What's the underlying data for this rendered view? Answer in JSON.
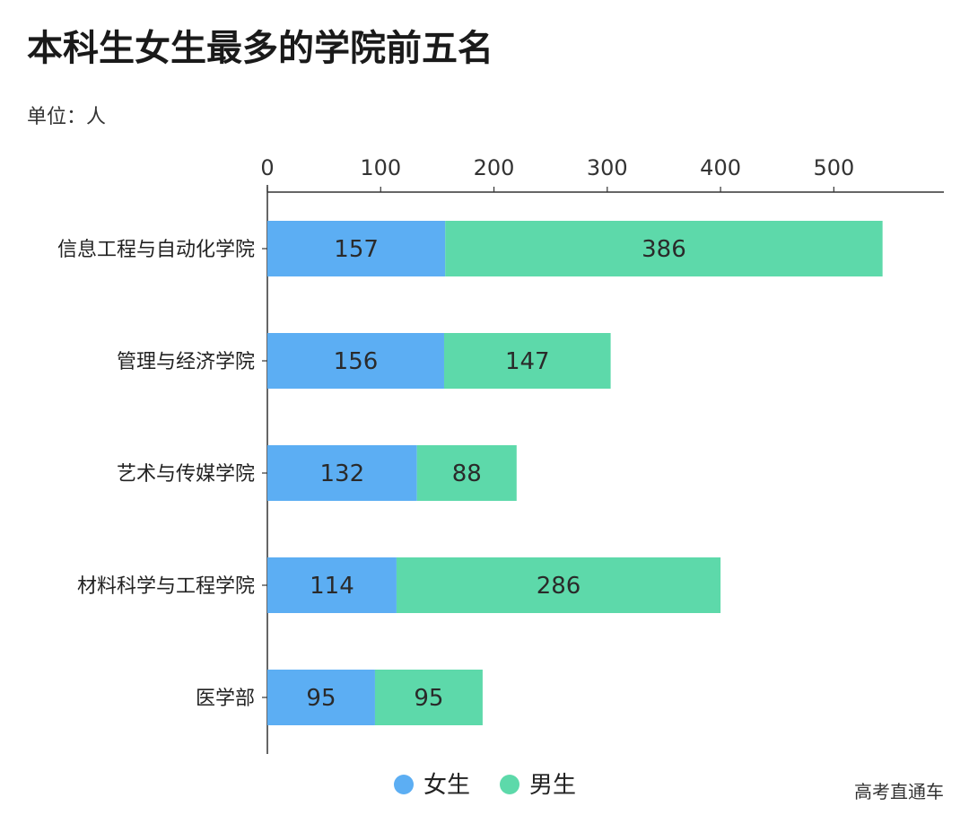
{
  "chart_data": {
    "type": "bar",
    "orientation": "horizontal",
    "stacked": true,
    "title": "本科生女生最多的学院前五名",
    "unit_label": "单位：人",
    "categories": [
      "信息工程与自动化学院",
      "管理与经济学院",
      "艺术与传媒学院",
      "材料科学与工程学院",
      "医学部"
    ],
    "series": [
      {
        "name": "女生",
        "color": "#5caef3",
        "values": [
          157,
          156,
          132,
          114,
          95
        ]
      },
      {
        "name": "男生",
        "color": "#5dd9aa",
        "values": [
          386,
          147,
          88,
          286,
          95
        ]
      }
    ],
    "x_ticks": [
      0,
      100,
      200,
      300,
      400,
      500
    ],
    "xlim": [
      0,
      600
    ],
    "x_axis_position": "top",
    "grid": false,
    "legend": "bottom-center",
    "data_labels": true
  },
  "watermark": "高考直通车"
}
